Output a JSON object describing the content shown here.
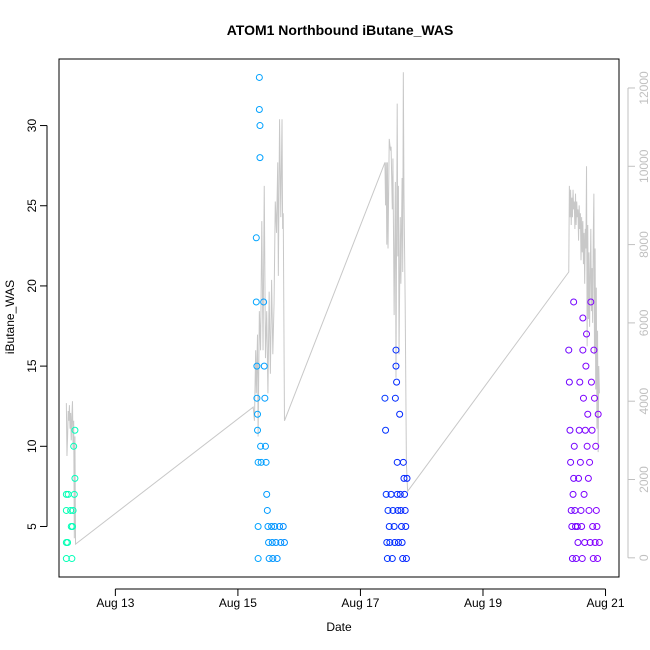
{
  "chart_data": {
    "type": "scatter",
    "title": "ATOM1 Northbound iButane_WAS",
    "xlabel": "Date",
    "ylabel": "iButane_WAS",
    "x_ticks": [
      "Aug 13",
      "Aug 15",
      "Aug 17",
      "Aug 19",
      "Aug 21"
    ],
    "x_tick_values": [
      13,
      15,
      17,
      19,
      21
    ],
    "xlim": [
      12.08,
      21.22
    ],
    "y_ticks": [
      5,
      10,
      15,
      20,
      25,
      30
    ],
    "ylim": [
      1.85,
      34.15
    ],
    "y2_ticks": [
      0,
      2000,
      4000,
      6000,
      8000,
      10000,
      12000
    ],
    "y2lim": [
      -490,
      12740
    ],
    "grid": false,
    "points_color_scale": [
      "#00ffb3",
      "#8800ff"
    ],
    "series": [
      {
        "type": "scatter",
        "points": [
          [
            12.2,
            7
          ],
          [
            12.2,
            6
          ],
          [
            12.2,
            4
          ],
          [
            12.2,
            3
          ],
          [
            12.22,
            4
          ],
          [
            12.23,
            7
          ],
          [
            12.27,
            6
          ],
          [
            12.28,
            5
          ],
          [
            12.29,
            3
          ],
          [
            12.3,
            5
          ],
          [
            12.31,
            6
          ],
          [
            12.32,
            10
          ],
          [
            12.33,
            7
          ],
          [
            12.34,
            11
          ],
          [
            12.34,
            8
          ],
          [
            15.3,
            23
          ],
          [
            15.3,
            19
          ],
          [
            15.31,
            15
          ],
          [
            15.31,
            13
          ],
          [
            15.32,
            12
          ],
          [
            15.32,
            11
          ],
          [
            15.33,
            9
          ],
          [
            15.33,
            5
          ],
          [
            15.33,
            3
          ],
          [
            15.35,
            33
          ],
          [
            15.35,
            31
          ],
          [
            15.36,
            30
          ],
          [
            15.36,
            28
          ],
          [
            15.37,
            10
          ],
          [
            15.38,
            9
          ],
          [
            15.42,
            19
          ],
          [
            15.43,
            15
          ],
          [
            15.44,
            13
          ],
          [
            15.45,
            10
          ],
          [
            15.46,
            9
          ],
          [
            15.47,
            7
          ],
          [
            15.48,
            6
          ],
          [
            15.49,
            5
          ],
          [
            15.5,
            4
          ],
          [
            15.51,
            3
          ],
          [
            15.55,
            5
          ],
          [
            15.56,
            4
          ],
          [
            15.57,
            3
          ],
          [
            15.6,
            5
          ],
          [
            15.62,
            4
          ],
          [
            15.64,
            3
          ],
          [
            15.68,
            5
          ],
          [
            15.7,
            4
          ],
          [
            15.74,
            5
          ],
          [
            15.76,
            4
          ],
          [
            17.4,
            13
          ],
          [
            17.41,
            11
          ],
          [
            17.42,
            7
          ],
          [
            17.43,
            4
          ],
          [
            17.44,
            3
          ],
          [
            17.45,
            6
          ],
          [
            17.47,
            5
          ],
          [
            17.48,
            4
          ],
          [
            17.5,
            7
          ],
          [
            17.52,
            3
          ],
          [
            17.53,
            6
          ],
          [
            17.55,
            5
          ],
          [
            17.56,
            4
          ],
          [
            17.57,
            13
          ],
          [
            17.58,
            15
          ],
          [
            17.58,
            16
          ],
          [
            17.59,
            14
          ],
          [
            17.6,
            7
          ],
          [
            17.6,
            9
          ],
          [
            17.61,
            6
          ],
          [
            17.62,
            4
          ],
          [
            17.64,
            12
          ],
          [
            17.65,
            7
          ],
          [
            17.66,
            6
          ],
          [
            17.67,
            5
          ],
          [
            17.68,
            4
          ],
          [
            17.69,
            3
          ],
          [
            17.7,
            9
          ],
          [
            17.71,
            8
          ],
          [
            17.72,
            7
          ],
          [
            17.73,
            6
          ],
          [
            17.74,
            5
          ],
          [
            17.75,
            3
          ],
          [
            17.76,
            8
          ],
          [
            20.4,
            16
          ],
          [
            20.41,
            14
          ],
          [
            20.42,
            11
          ],
          [
            20.43,
            9
          ],
          [
            20.44,
            6
          ],
          [
            20.45,
            5
          ],
          [
            20.46,
            3
          ],
          [
            20.47,
            7
          ],
          [
            20.48,
            8
          ],
          [
            20.48,
            19
          ],
          [
            20.49,
            10
          ],
          [
            20.5,
            6
          ],
          [
            20.51,
            5
          ],
          [
            20.52,
            3
          ],
          [
            20.54,
            5
          ],
          [
            20.55,
            4
          ],
          [
            20.56,
            8
          ],
          [
            20.57,
            11
          ],
          [
            20.58,
            14
          ],
          [
            20.59,
            9
          ],
          [
            20.6,
            6
          ],
          [
            20.61,
            5
          ],
          [
            20.62,
            3
          ],
          [
            20.63,
            16
          ],
          [
            20.63,
            18
          ],
          [
            20.64,
            13
          ],
          [
            20.65,
            7
          ],
          [
            20.66,
            4
          ],
          [
            20.67,
            11
          ],
          [
            20.68,
            15
          ],
          [
            20.69,
            17
          ],
          [
            20.7,
            10
          ],
          [
            20.71,
            12
          ],
          [
            20.72,
            8
          ],
          [
            20.73,
            6
          ],
          [
            20.74,
            9
          ],
          [
            20.75,
            4
          ],
          [
            20.76,
            19
          ],
          [
            20.77,
            14
          ],
          [
            20.78,
            11
          ],
          [
            20.79,
            5
          ],
          [
            20.8,
            3
          ],
          [
            20.81,
            16
          ],
          [
            20.82,
            13
          ],
          [
            20.83,
            4
          ],
          [
            20.84,
            10
          ],
          [
            20.85,
            6
          ],
          [
            20.86,
            5
          ],
          [
            20.87,
            3
          ],
          [
            20.88,
            12
          ],
          [
            20.9,
            4
          ]
        ]
      },
      {
        "type": "line",
        "axis": "right",
        "color": "#c8c8c8",
        "points": [
          [
            12.2,
            3950
          ],
          [
            12.21,
            2600
          ],
          [
            12.22,
            3100
          ],
          [
            12.23,
            3750
          ],
          [
            12.24,
            3500
          ],
          [
            12.25,
            3900
          ],
          [
            12.26,
            3300
          ],
          [
            12.27,
            3700
          ],
          [
            12.28,
            3000
          ],
          [
            12.29,
            3600
          ],
          [
            12.3,
            4000
          ],
          [
            12.31,
            2800
          ],
          [
            12.32,
            3500
          ],
          [
            12.33,
            500
          ],
          [
            12.34,
            3100
          ],
          [
            12.35,
            350
          ],
          [
            15.25,
            3850
          ],
          [
            15.27,
            3500
          ],
          [
            15.29,
            5300
          ],
          [
            15.3,
            4200
          ],
          [
            15.32,
            5700
          ],
          [
            15.33,
            3100
          ],
          [
            15.35,
            6300
          ],
          [
            15.37,
            5300
          ],
          [
            15.39,
            8600
          ],
          [
            15.41,
            5300
          ],
          [
            15.43,
            9500
          ],
          [
            15.45,
            5100
          ],
          [
            15.47,
            6300
          ],
          [
            15.49,
            4200
          ],
          [
            15.51,
            6800
          ],
          [
            15.53,
            4700
          ],
          [
            15.55,
            7100
          ],
          [
            15.57,
            5200
          ],
          [
            15.59,
            6500
          ],
          [
            15.61,
            9100
          ],
          [
            15.63,
            8300
          ],
          [
            15.65,
            10100
          ],
          [
            15.66,
            7200
          ],
          [
            15.68,
            11200
          ],
          [
            15.7,
            8700
          ],
          [
            15.72,
            11200
          ],
          [
            15.73,
            8400
          ],
          [
            15.74,
            8800
          ],
          [
            15.76,
            3500
          ],
          [
            17.4,
            10100
          ],
          [
            17.41,
            9000
          ],
          [
            17.42,
            10100
          ],
          [
            17.43,
            8000
          ],
          [
            17.44,
            10100
          ],
          [
            17.45,
            7900
          ],
          [
            17.47,
            10700
          ],
          [
            17.49,
            10400
          ],
          [
            17.5,
            10500
          ],
          [
            17.52,
            8900
          ],
          [
            17.53,
            10200
          ],
          [
            17.55,
            6200
          ],
          [
            17.57,
            9600
          ],
          [
            17.58,
            4600
          ],
          [
            17.59,
            8300
          ],
          [
            17.6,
            11600
          ],
          [
            17.61,
            7700
          ],
          [
            17.62,
            9500
          ],
          [
            17.63,
            5200
          ],
          [
            17.65,
            8700
          ],
          [
            17.66,
            7000
          ],
          [
            17.68,
            9700
          ],
          [
            17.69,
            7300
          ],
          [
            17.7,
            12400
          ],
          [
            17.71,
            9300
          ],
          [
            17.73,
            6500
          ],
          [
            17.75,
            2400
          ],
          [
            17.77,
            1700
          ],
          [
            20.4,
            7300
          ],
          [
            20.41,
            9500
          ],
          [
            20.42,
            8700
          ],
          [
            20.43,
            9400
          ],
          [
            20.44,
            8500
          ],
          [
            20.45,
            9200
          ],
          [
            20.46,
            8700
          ],
          [
            20.47,
            9400
          ],
          [
            20.48,
            8900
          ],
          [
            20.49,
            9100
          ],
          [
            20.5,
            8400
          ],
          [
            20.51,
            9300
          ],
          [
            20.52,
            8500
          ],
          [
            20.53,
            9100
          ],
          [
            20.54,
            8700
          ],
          [
            20.55,
            8900
          ],
          [
            20.56,
            8100
          ],
          [
            20.57,
            9000
          ],
          [
            20.58,
            8400
          ],
          [
            20.59,
            8800
          ],
          [
            20.6,
            7600
          ],
          [
            20.61,
            8700
          ],
          [
            20.62,
            7800
          ],
          [
            20.63,
            8600
          ],
          [
            20.64,
            7500
          ],
          [
            20.65,
            8300
          ],
          [
            20.66,
            7000
          ],
          [
            20.67,
            8400
          ],
          [
            20.68,
            7900
          ],
          [
            20.69,
            10000
          ],
          [
            20.7,
            5400
          ],
          [
            20.71,
            8500
          ],
          [
            20.72,
            6100
          ],
          [
            20.73,
            7800
          ],
          [
            20.74,
            5900
          ],
          [
            20.75,
            7200
          ],
          [
            20.76,
            8400
          ],
          [
            20.77,
            6300
          ],
          [
            20.78,
            7400
          ],
          [
            20.79,
            6000
          ],
          [
            20.8,
            8200
          ],
          [
            20.81,
            9300
          ],
          [
            20.82,
            5200
          ],
          [
            20.83,
            7900
          ],
          [
            20.84,
            4300
          ],
          [
            20.85,
            6900
          ],
          [
            20.86,
            3300
          ],
          [
            20.87,
            5800
          ],
          [
            20.88,
            2700
          ],
          [
            20.89,
            4900
          ],
          [
            20.9,
            4200
          ]
        ]
      }
    ]
  }
}
